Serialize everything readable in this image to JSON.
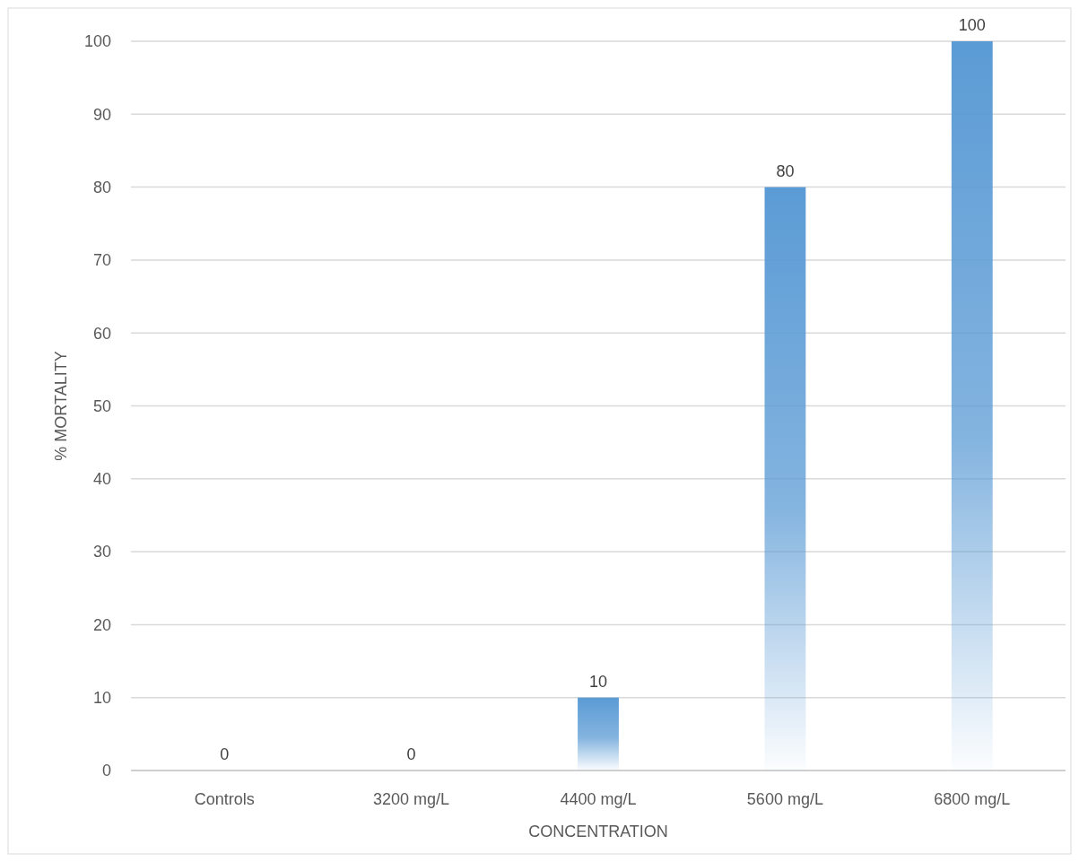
{
  "chart_data": {
    "type": "bar",
    "xlabel": "CONCENTRATION",
    "ylabel": "% MORTALITY",
    "categories": [
      "Controls",
      "3200 mg/L",
      "4400 mg/L",
      "5600 mg/L",
      "6800 mg/L"
    ],
    "values": [
      0,
      0,
      10,
      80,
      100
    ],
    "color": "#5b9bd5",
    "ylim": [
      0,
      100
    ],
    "yticks": [
      0,
      10,
      20,
      30,
      40,
      50,
      60,
      70,
      80,
      90,
      100
    ],
    "grid": "y",
    "data_labels": true
  }
}
